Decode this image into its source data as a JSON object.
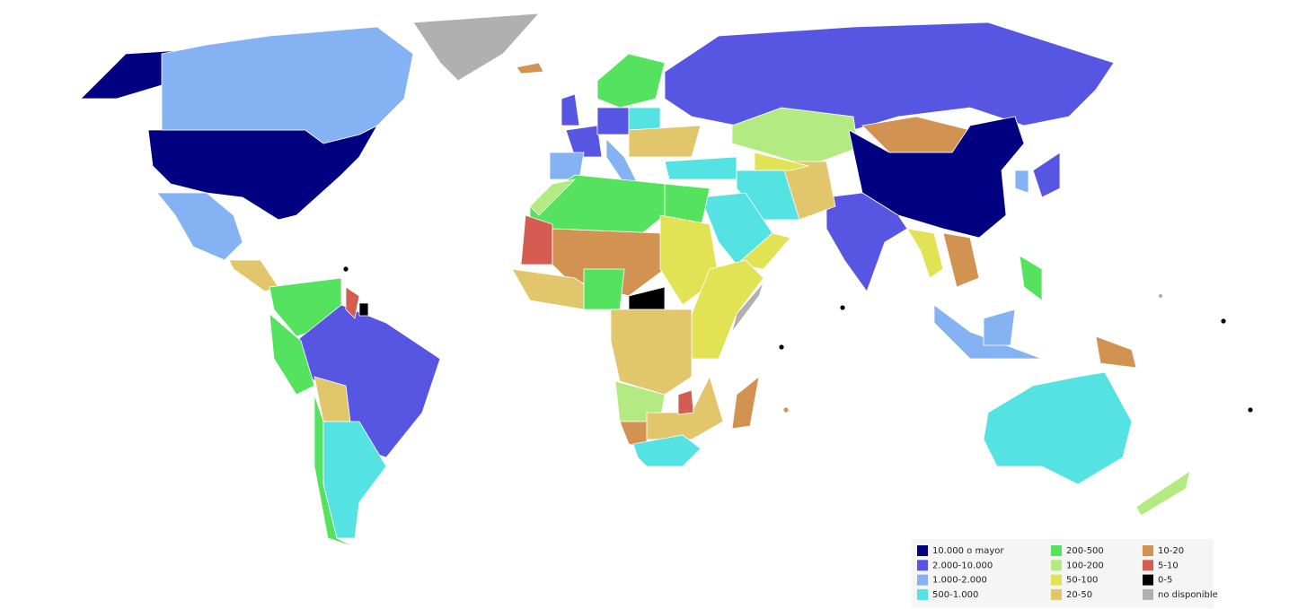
{
  "legend": {
    "items": [
      {
        "label": "10.000 o mayor",
        "color": "#000080"
      },
      {
        "label": "2.000-10.000",
        "color": "#5656e3"
      },
      {
        "label": "1.000-2.000",
        "color": "#84b2f2"
      },
      {
        "label": "500-1.000",
        "color": "#55e2e2"
      },
      {
        "label": "200-500",
        "color": "#55e25f"
      },
      {
        "label": "100-200",
        "color": "#b3ea82"
      },
      {
        "label": "50-100",
        "color": "#e2e255"
      },
      {
        "label": "20-50",
        "color": "#e2c66c"
      },
      {
        "label": "10-20",
        "color": "#d29252"
      },
      {
        "label": "5-10",
        "color": "#d45c50"
      },
      {
        "label": "0-5",
        "color": "#000000"
      },
      {
        "label": "no disponible",
        "color": "#b0b0b0"
      }
    ]
  }
}
